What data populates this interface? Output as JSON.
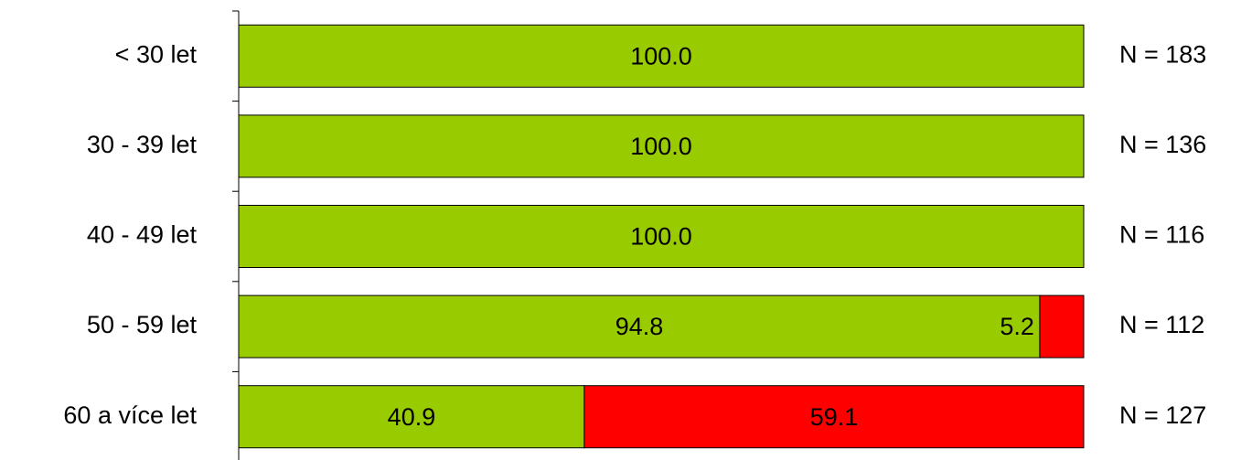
{
  "chart_data": {
    "type": "stacked-barh",
    "categories": [
      "< 30 let",
      "30 - 39 let",
      "40 - 49 let",
      "50 - 59 let",
      "60 a více let"
    ],
    "series": [
      {
        "color": "#99cc00",
        "values": [
          100,
          100,
          100,
          94.8,
          40.9
        ],
        "value_labels": [
          "100.0",
          "100.0",
          "100.0",
          "94.8",
          "40.9"
        ]
      },
      {
        "color": "#ff0000",
        "values": [
          null,
          null,
          null,
          5.2,
          59.1
        ],
        "value_labels": [
          null,
          null,
          null,
          "5.2",
          "59.1"
        ]
      }
    ],
    "annotations": [
      "N = 183",
      "N = 136",
      "N = 116",
      "N = 112",
      "N = 127"
    ],
    "xlim": [
      0,
      100
    ]
  }
}
